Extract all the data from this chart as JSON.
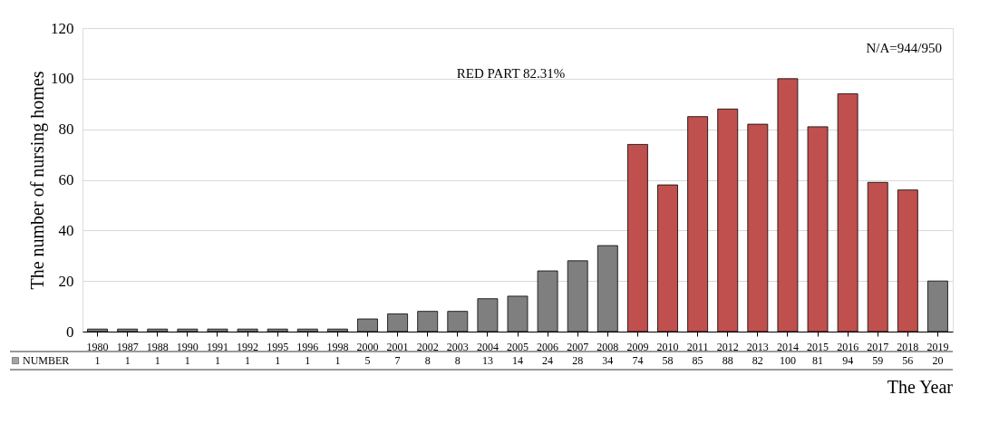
{
  "chart_data": {
    "type": "bar",
    "xlabel": "The Year",
    "ylabel": "The number of nursing homes",
    "categories": [
      "1980",
      "1987",
      "1988",
      "1990",
      "1991",
      "1992",
      "1995",
      "1996",
      "1998",
      "2000",
      "2001",
      "2002",
      "2003",
      "2004",
      "2005",
      "2006",
      "2007",
      "2008",
      "2009",
      "2010",
      "2011",
      "2012",
      "2013",
      "2014",
      "2015",
      "2016",
      "2017",
      "2018",
      "2019"
    ],
    "series": [
      {
        "name": "NUMBER",
        "color": "#7f7f7f",
        "values": [
          1,
          1,
          1,
          1,
          1,
          1,
          1,
          1,
          1,
          5,
          7,
          8,
          8,
          13,
          14,
          24,
          28,
          34,
          74,
          58,
          85,
          88,
          82,
          100,
          81,
          94,
          59,
          56,
          20
        ],
        "colors": [
          "#7f7f7f",
          "#7f7f7f",
          "#7f7f7f",
          "#7f7f7f",
          "#7f7f7f",
          "#7f7f7f",
          "#7f7f7f",
          "#7f7f7f",
          "#7f7f7f",
          "#7f7f7f",
          "#7f7f7f",
          "#7f7f7f",
          "#7f7f7f",
          "#7f7f7f",
          "#7f7f7f",
          "#7f7f7f",
          "#7f7f7f",
          "#7f7f7f",
          "#c0504d",
          "#c0504d",
          "#c0504d",
          "#c0504d",
          "#c0504d",
          "#c0504d",
          "#c0504d",
          "#c0504d",
          "#c0504d",
          "#c0504d",
          "#7f7f7f"
        ]
      }
    ],
    "ylim": [
      0,
      120
    ],
    "yticks": [
      0,
      20,
      40,
      60,
      80,
      100,
      120
    ],
    "grid": "y",
    "data_labels": true,
    "legend": "bottom",
    "annotations": [
      "RED PART 82.31%",
      "N/A=944/950"
    ]
  }
}
